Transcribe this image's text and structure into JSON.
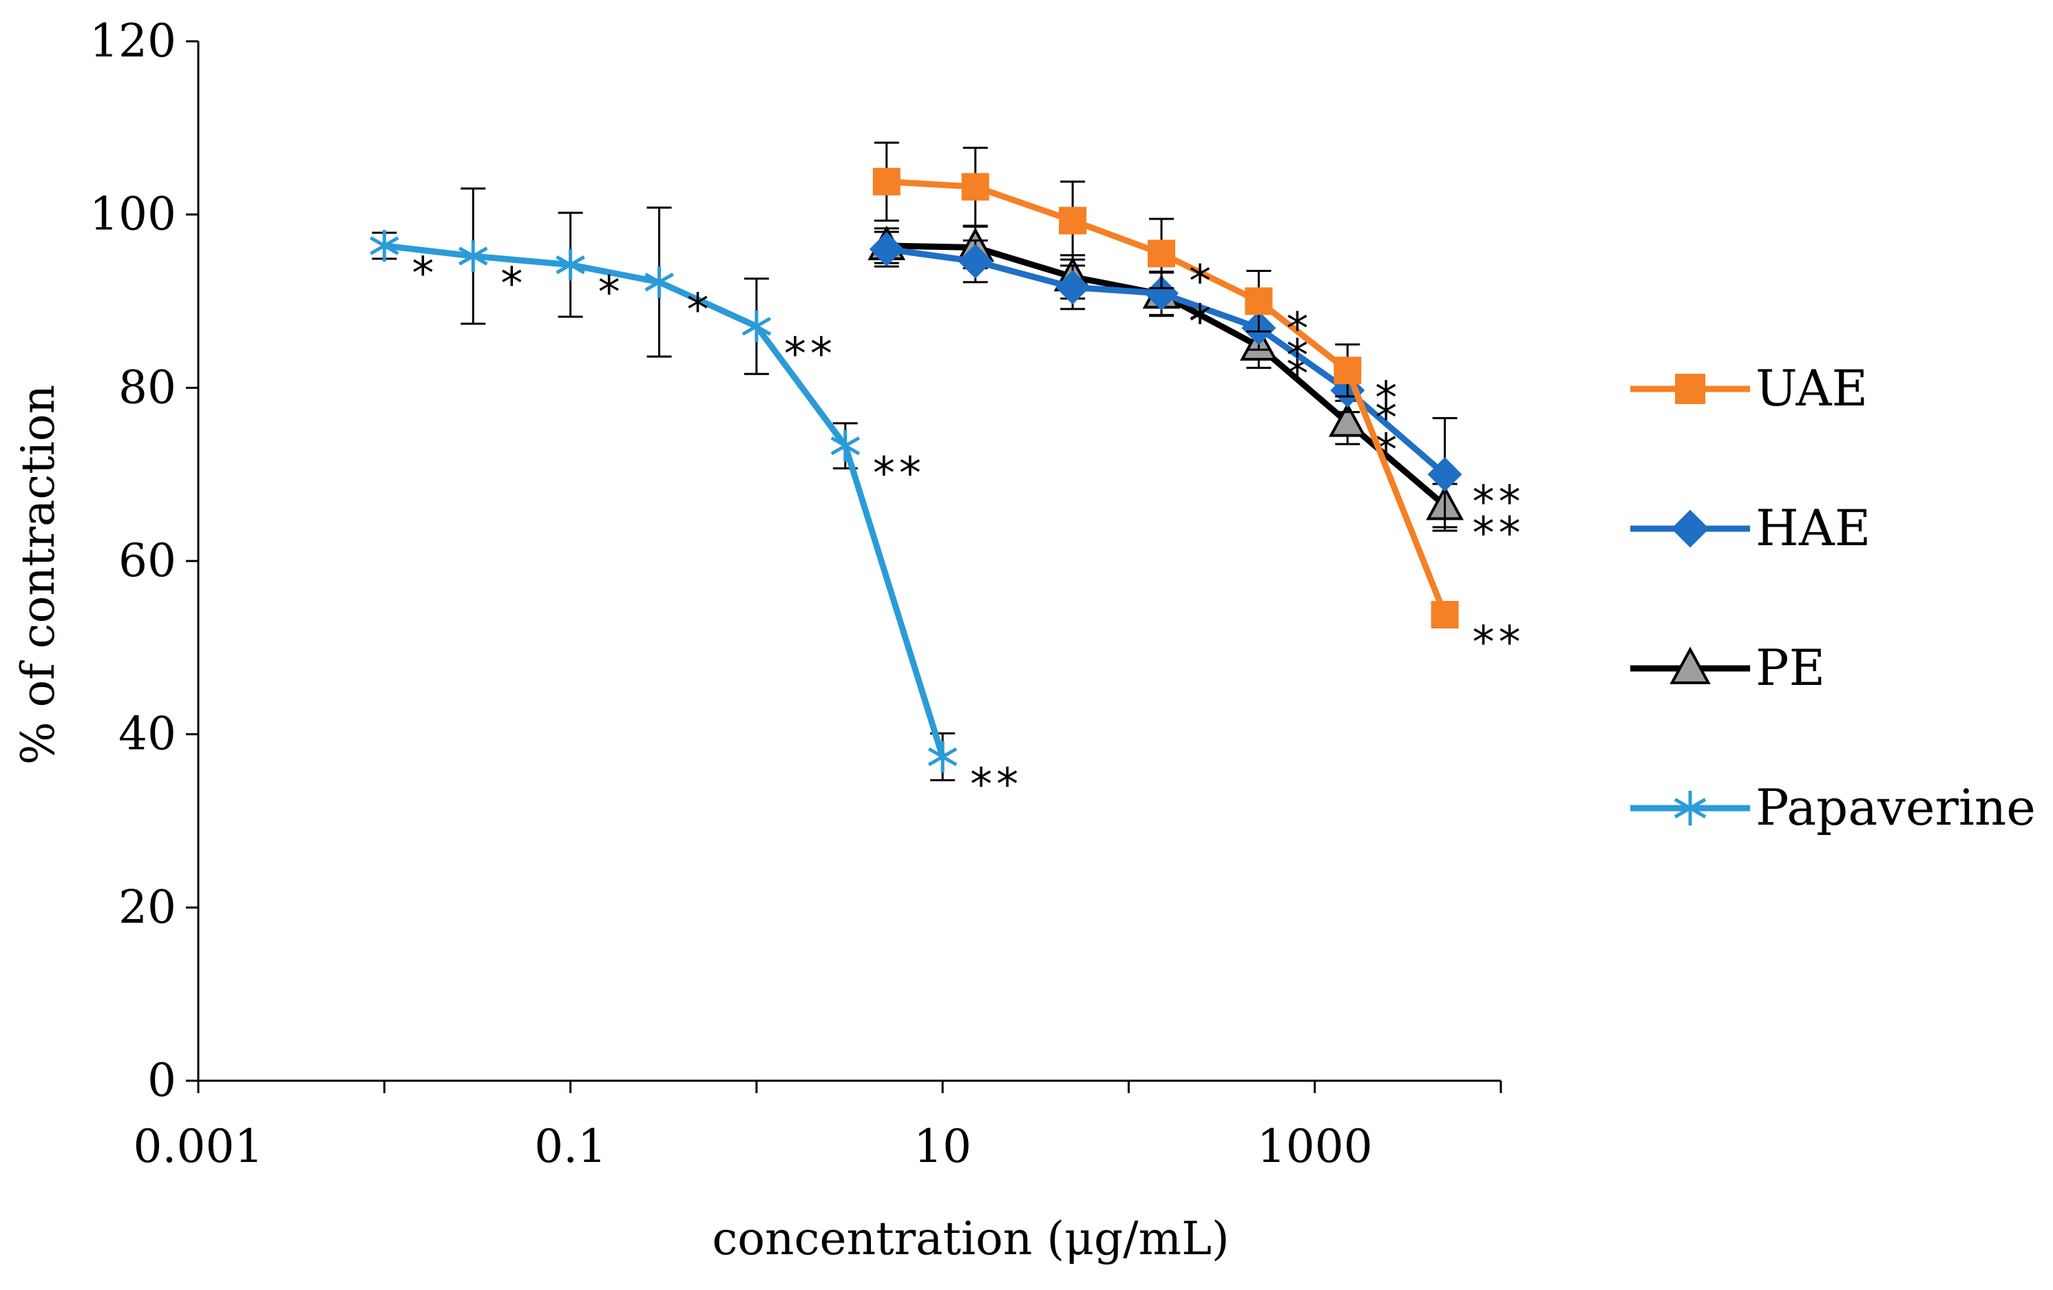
{
  "chart_data": {
    "type": "line",
    "title": "",
    "xlabel": "concentration (μg/mL)",
    "ylabel": "% of contraction",
    "xscale": "log",
    "xlim": [
      0.001,
      10000
    ],
    "ylim": [
      0,
      120
    ],
    "y_ticks": [
      0,
      20,
      40,
      60,
      80,
      100,
      120
    ],
    "x_ticks": [
      0.001,
      0.1,
      10,
      1000
    ],
    "x_tick_labels": [
      "0.001",
      "0.1",
      "10",
      "1000"
    ],
    "legend_position": "right",
    "series": [
      {
        "name": "UAE",
        "color": "#f58025",
        "marker": "square",
        "x": [
          5,
          15,
          50,
          150,
          500,
          1500,
          5000
        ],
        "y": [
          103.8,
          103.2,
          99.3,
          95.5,
          90.0,
          82.0,
          53.8
        ],
        "error": [
          4.5,
          4.5,
          4.5,
          4.0,
          3.5,
          3.0,
          0
        ],
        "annotations": [
          "",
          "",
          "",
          "*",
          "*",
          "*",
          "**"
        ]
      },
      {
        "name": "HAE",
        "color": "#1f6fc5",
        "marker": "diamond",
        "x": [
          5,
          15,
          50,
          150,
          500,
          1500,
          5000
        ],
        "y": [
          96.0,
          94.6,
          91.6,
          90.9,
          86.9,
          79.7,
          70.0
        ],
        "error": [
          2.0,
          2.4,
          2.5,
          2.5,
          2.5,
          2.5,
          6.5
        ],
        "annotations": [
          "",
          "",
          "",
          "*",
          "*",
          "*",
          "**"
        ]
      },
      {
        "name": "PE",
        "color": "#000000",
        "marker": "triangle",
        "x": [
          5,
          15,
          50,
          150,
          500,
          1500,
          5000
        ],
        "y": [
          96.4,
          96.2,
          92.8,
          90.8,
          84.8,
          76.0,
          66.4
        ],
        "error": [
          2.0,
          2.4,
          2.5,
          2.5,
          2.5,
          2.5,
          2.5
        ],
        "annotations": [
          "",
          "",
          "",
          "*",
          "*",
          "*",
          "**"
        ]
      },
      {
        "name": "Papaverine",
        "color": "#2b9bd8",
        "marker": "asterisk",
        "x": [
          0.01,
          0.03,
          0.1,
          0.3,
          1,
          3,
          10
        ],
        "y": [
          96.4,
          95.2,
          94.2,
          92.2,
          87.1,
          73.3,
          37.4
        ],
        "error": [
          1.5,
          7.8,
          6.0,
          8.6,
          5.5,
          2.6,
          2.7
        ],
        "annotations": [
          "*",
          "*",
          "*",
          "*",
          "**",
          "**",
          "**"
        ]
      }
    ]
  }
}
